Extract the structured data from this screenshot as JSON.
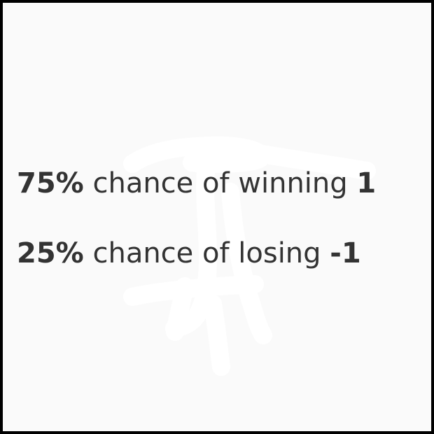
{
  "options": [
    {
      "probability": "75%",
      "description": "chance of winning",
      "payoff": "1"
    },
    {
      "probability": "25%",
      "description": "chance of losing",
      "payoff": "-1"
    }
  ],
  "colors": {
    "border": "#000000",
    "background": "#fafafa",
    "text": "#333333",
    "scribble": "#ffffff"
  }
}
